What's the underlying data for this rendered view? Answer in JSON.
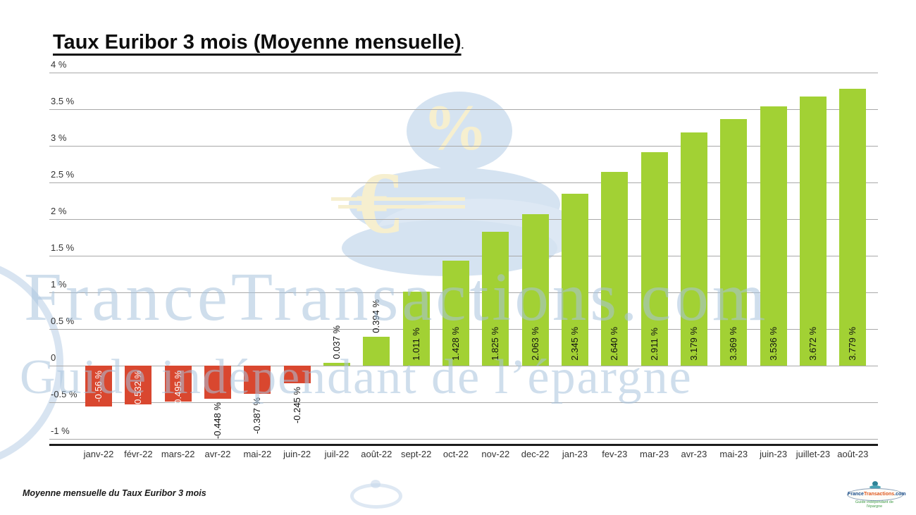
{
  "title": {
    "text": "Taux Euribor 3 mois (Moyenne mensuelle)",
    "suffix": "."
  },
  "caption": "Moyenne mensuelle du Taux Euribor 3 mois",
  "watermark": {
    "line1": "FranceTransactions.com",
    "line2": "Guide indépendant de l’épargne",
    "percent_glyph": "%",
    "euro_glyph": "€"
  },
  "logo": {
    "brand_france": "France",
    "brand_transactions": "Transactions",
    "brand_tld": ".com",
    "tagline": "Guide indépendant de l'épargne"
  },
  "colors": {
    "positive_bar": "#a2d134",
    "negative_bar": "#d9472f",
    "gridline": "#a9a9a9",
    "axis_line": "#1c1c1c",
    "label_inside_negative": "#ffffff",
    "label_default": "#111111",
    "watermark_blue": "rgba(167,194,221,0.55)",
    "mascot_blue": "#d5e3f1",
    "mascot_cream": "#f6efcf"
  },
  "chart_data": {
    "type": "bar",
    "title": "Taux Euribor 3 mois (Moyenne mensuelle)",
    "xlabel": "",
    "ylabel": "",
    "ylim": [
      -1,
      4
    ],
    "grid": true,
    "legend": false,
    "categories": [
      "janv-22",
      "févr-22",
      "mars-22",
      "avr-22",
      "mai-22",
      "juin-22",
      "juil-22",
      "août-22",
      "sept-22",
      "oct-22",
      "nov-22",
      "dec-22",
      "jan-23",
      "fev-23",
      "mar-23",
      "avr-23",
      "mai-23",
      "juin-23",
      "juillet-23",
      "août-23"
    ],
    "values": [
      -0.56,
      -0.532,
      -0.495,
      -0.448,
      -0.387,
      -0.245,
      0.037,
      0.394,
      1.011,
      1.428,
      1.825,
      2.063,
      2.345,
      2.64,
      2.911,
      3.179,
      3.369,
      3.536,
      3.672,
      3.779
    ],
    "value_labels": [
      "-0.56 %",
      "-0.532 %",
      "-0.495 %",
      "-0.448 %",
      "-0.387 %",
      "-0.245 %",
      "0.037 %",
      "0.394 %",
      "1.011 %",
      "1.428 %",
      "1.825 %",
      "2.063 %",
      "2.345 %",
      "2.640 %",
      "2.911 %",
      "3.179 %",
      "3.369 %",
      "3.536 %",
      "3.672 %",
      "3.779 %"
    ],
    "label_positions": [
      "inside-top",
      "inside-top",
      "inside-top",
      "below",
      "below",
      "below",
      "above",
      "above",
      "inside-bottom",
      "inside-bottom",
      "inside-bottom",
      "inside-bottom",
      "inside-bottom",
      "inside-bottom",
      "inside-bottom",
      "inside-bottom",
      "inside-bottom",
      "inside-bottom",
      "inside-bottom",
      "inside-bottom"
    ],
    "ytick_labels": [
      "4 %",
      "3.5 %",
      "3 %",
      "2.5 %",
      "2 %",
      "1.5 %",
      "1 %",
      "0.5 %",
      "0",
      "-0.5 %",
      "-1 %"
    ],
    "ytick_values": [
      4,
      3.5,
      3,
      2.5,
      2,
      1.5,
      1,
      0.5,
      0,
      -0.5,
      -1
    ]
  }
}
